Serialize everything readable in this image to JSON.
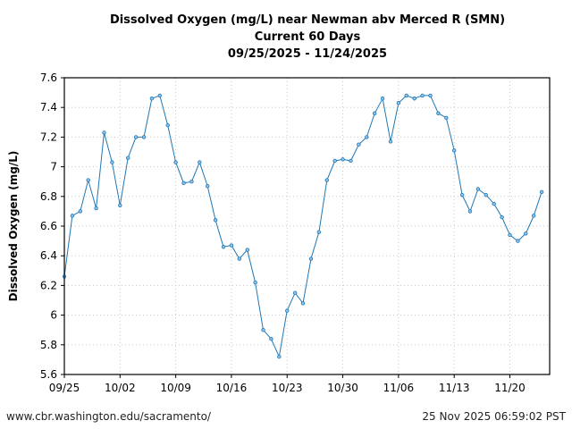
{
  "chart_data": {
    "type": "line",
    "title": "Dissolved Oxygen (mg/L) near Newman abv Merced R (SMN)",
    "subtitle": "Current 60 Days",
    "date_range": "09/25/2025 - 11/24/2025",
    "xlabel": "",
    "ylabel": "Dissolved Oxygen (mg/L)",
    "ylim": [
      5.6,
      7.6
    ],
    "xlim": [
      "2025-09-25",
      "2025-11-25"
    ],
    "grid": true,
    "y_ticks": [
      "5.6",
      "5.8",
      "6",
      "6.2",
      "6.4",
      "6.6",
      "6.8",
      "7",
      "7.2",
      "7.4",
      "7.6"
    ],
    "x_ticks": [
      {
        "date": "2025-09-25",
        "label": "09/25"
      },
      {
        "date": "2025-10-02",
        "label": "10/02"
      },
      {
        "date": "2025-10-09",
        "label": "10/09"
      },
      {
        "date": "2025-10-16",
        "label": "10/16"
      },
      {
        "date": "2025-10-23",
        "label": "10/23"
      },
      {
        "date": "2025-10-30",
        "label": "10/30"
      },
      {
        "date": "2025-11-06",
        "label": "11/06"
      },
      {
        "date": "2025-11-13",
        "label": "11/13"
      },
      {
        "date": "2025-11-20",
        "label": "11/20"
      }
    ],
    "line_color": "#1f77b4",
    "x": [
      "2025-09-25",
      "2025-09-26",
      "2025-09-27",
      "2025-09-28",
      "2025-09-29",
      "2025-09-30",
      "2025-10-01",
      "2025-10-02",
      "2025-10-03",
      "2025-10-04",
      "2025-10-05",
      "2025-10-06",
      "2025-10-07",
      "2025-10-08",
      "2025-10-09",
      "2025-10-10",
      "2025-10-11",
      "2025-10-12",
      "2025-10-13",
      "2025-10-14",
      "2025-10-15",
      "2025-10-16",
      "2025-10-17",
      "2025-10-18",
      "2025-10-19",
      "2025-10-20",
      "2025-10-21",
      "2025-10-22",
      "2025-10-23",
      "2025-10-24",
      "2025-10-25",
      "2025-10-26",
      "2025-10-27",
      "2025-10-28",
      "2025-10-29",
      "2025-10-30",
      "2025-10-31",
      "2025-11-01",
      "2025-11-02",
      "2025-11-03",
      "2025-11-04",
      "2025-11-05",
      "2025-11-06",
      "2025-11-07",
      "2025-11-08",
      "2025-11-09",
      "2025-11-10",
      "2025-11-11",
      "2025-11-12",
      "2025-11-13",
      "2025-11-14",
      "2025-11-15",
      "2025-11-16",
      "2025-11-17",
      "2025-11-18",
      "2025-11-19",
      "2025-11-20",
      "2025-11-21",
      "2025-11-22",
      "2025-11-23",
      "2025-11-24"
    ],
    "values": [
      6.26,
      6.67,
      6.7,
      6.91,
      6.72,
      7.23,
      7.03,
      6.74,
      7.06,
      7.2,
      7.2,
      7.46,
      7.48,
      7.28,
      7.03,
      6.89,
      6.9,
      7.03,
      6.87,
      6.64,
      6.46,
      6.47,
      6.38,
      6.44,
      6.22,
      5.9,
      5.84,
      5.72,
      6.03,
      6.15,
      6.08,
      6.38,
      6.56,
      6.91,
      7.04,
      7.05,
      7.04,
      7.15,
      7.2,
      7.36,
      7.46,
      7.17,
      7.43,
      7.48,
      7.46,
      7.48,
      7.48,
      7.36,
      7.33,
      7.11,
      6.81,
      6.7,
      6.85,
      6.81,
      6.75,
      6.66,
      6.54,
      6.5,
      6.55,
      6.67,
      6.83
    ]
  },
  "footer": {
    "url": "www.cbr.washington.edu/sacramento/",
    "timestamp": "25 Nov 2025 06:59:02 PST"
  }
}
